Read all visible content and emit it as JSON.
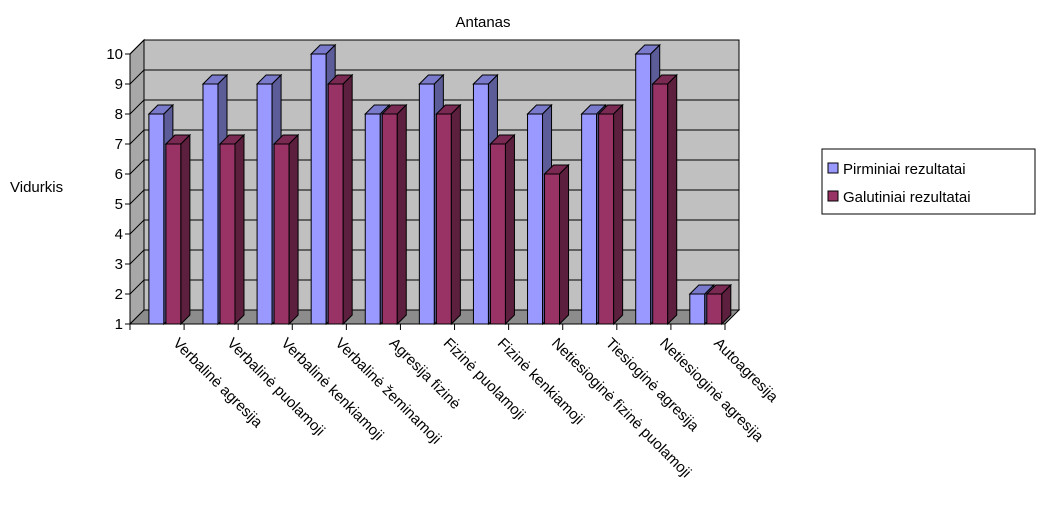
{
  "chart_data": {
    "type": "bar",
    "title": "Antanas",
    "xlabel": "",
    "ylabel": "Vidurkis",
    "ylim": [
      1,
      10
    ],
    "yticks": [
      1,
      2,
      3,
      4,
      5,
      6,
      7,
      8,
      9,
      10
    ],
    "grid": true,
    "legend_position": "right",
    "categories": [
      "Verbalinė agresija",
      "Verbalinė puolamoji",
      "Verbalinė kenkiamoji",
      "Verbalinė žeminamoji",
      "Agresija fizinė",
      "Fizinė puolamoji",
      "Fizinė kenkiamoji",
      "Netiesioginė fizinė puolamoji",
      "Tiesioginė agresija",
      "Netiesioginė agresija",
      "Autoagresija"
    ],
    "series": [
      {
        "name": "Pirminiai rezultatai",
        "color": "#9999FF",
        "values": [
          8,
          9,
          9,
          10,
          8,
          9,
          9,
          8,
          8,
          10,
          2
        ]
      },
      {
        "name": "Galutiniai rezultatai",
        "color": "#993366",
        "values": [
          7,
          7,
          7,
          9,
          8,
          8,
          7,
          6,
          8,
          9,
          2
        ]
      }
    ],
    "plot_background": "#C0C0C0"
  }
}
